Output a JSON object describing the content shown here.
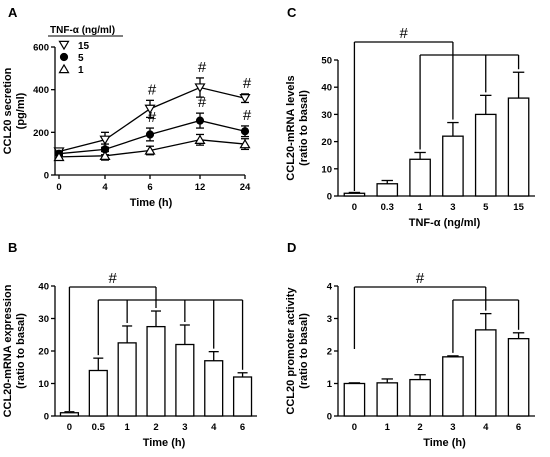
{
  "chart_data": [
    {
      "panel": "A",
      "type": "line",
      "x": [
        0,
        4,
        6,
        12,
        24
      ],
      "xticks": [
        "0",
        "4",
        "6",
        "12",
        "24"
      ],
      "xlabel": "Time (h)",
      "ylabel": [
        "CCL20 secretion",
        "(pg/ml)"
      ],
      "yticks": [
        0,
        200,
        400,
        600
      ],
      "ylim": [
        0,
        600
      ],
      "legend_title": "TNF-α (ng/ml)",
      "legend_position": "top-left",
      "series": [
        {
          "name": "15",
          "marker": "triangle-down",
          "values": [
            110,
            165,
            310,
            410,
            360
          ],
          "err": [
            15,
            35,
            40,
            45,
            20
          ],
          "annot": [
            null,
            null,
            "#",
            "#",
            "#"
          ]
        },
        {
          "name": "5",
          "marker": "circle",
          "values": [
            100,
            120,
            190,
            255,
            205
          ],
          "err": [
            10,
            25,
            30,
            35,
            25
          ],
          "annot": [
            null,
            null,
            "#",
            "#",
            "#"
          ]
        },
        {
          "name": "1",
          "marker": "triangle-up",
          "values": [
            85,
            90,
            115,
            165,
            145
          ],
          "err": [
            8,
            20,
            20,
            25,
            25
          ],
          "annot": [
            null,
            null,
            null,
            null,
            null
          ]
        }
      ]
    },
    {
      "panel": "B",
      "type": "bar",
      "categories": [
        "0",
        "0.5",
        "1",
        "2",
        "3",
        "4",
        "6"
      ],
      "values": [
        1,
        14,
        22.5,
        27.5,
        22,
        17,
        12
      ],
      "err": [
        0.3,
        3.8,
        5.2,
        4.8,
        6,
        2.8,
        1.3
      ],
      "xlabel": "Time (h)",
      "ylabel": [
        "CCL20-mRNA expression",
        "(ratio to basal)"
      ],
      "yticks": [
        0,
        10,
        20,
        30,
        40
      ],
      "ylim": [
        0,
        40
      ],
      "annotation": "#"
    },
    {
      "panel": "C",
      "type": "bar",
      "categories": [
        "0",
        "0.3",
        "1",
        "3",
        "5",
        "15"
      ],
      "values": [
        1,
        4.5,
        13.5,
        22,
        30,
        36
      ],
      "err": [
        0.3,
        1.2,
        2.5,
        5,
        7,
        9.5
      ],
      "xlabel": "TNF-α (ng/ml)",
      "ylabel": [
        "CCL20-mRNA levels",
        "(ratio to basal)"
      ],
      "yticks": [
        0,
        10,
        20,
        30,
        40,
        50
      ],
      "ylim": [
        0,
        50
      ],
      "annotation": "#"
    },
    {
      "panel": "D",
      "type": "bar",
      "categories": [
        "0",
        "1",
        "2",
        "3",
        "4",
        "6"
      ],
      "values": [
        1,
        1.02,
        1.12,
        1.82,
        2.65,
        2.38
      ],
      "err": [
        0.02,
        0.12,
        0.15,
        0.03,
        0.5,
        0.18
      ],
      "xlabel": "Time (h)",
      "ylabel": [
        "CCL20 promoter activity",
        "(ratio to basal)"
      ],
      "yticks": [
        0,
        1,
        2,
        3,
        4
      ],
      "ylim": [
        0,
        4
      ],
      "annotation": "#"
    }
  ]
}
